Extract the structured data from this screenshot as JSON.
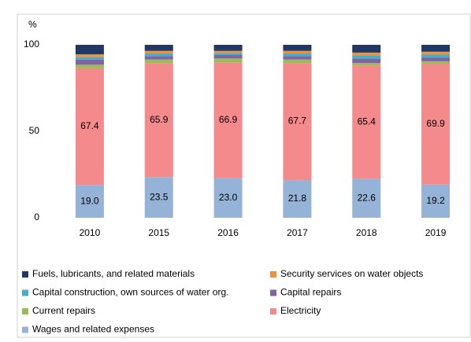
{
  "chart_data": {
    "type": "stacked_bar",
    "y_label": "%",
    "categories": [
      "2010",
      "2015",
      "2016",
      "2017",
      "2018",
      "2019"
    ],
    "ylim": [
      0,
      100
    ],
    "yticks": [
      0,
      50,
      100
    ],
    "series": [
      {
        "name": "Fuels, lubricants, and related materials",
        "color": "#203864",
        "values": [
          5.5,
          3.5,
          3.5,
          3.5,
          4.5,
          4.0
        ]
      },
      {
        "name": "Security services on water objects",
        "color": "#f0923a",
        "values": [
          1.5,
          1.5,
          1.2,
          1.5,
          1.5,
          1.5
        ]
      },
      {
        "name": "Capital construction, own sources of water org.",
        "color": "#4bacc6",
        "values": [
          1.5,
          1.5,
          1.2,
          1.5,
          2.0,
          2.0
        ]
      },
      {
        "name": "Capital repairs",
        "color": "#8064a2",
        "values": [
          3.0,
          2.0,
          2.0,
          2.0,
          2.5,
          2.0
        ]
      },
      {
        "name": "Current repairs",
        "color": "#9bbb59",
        "values": [
          2.1,
          2.1,
          2.2,
          2.0,
          1.5,
          1.4
        ]
      },
      {
        "name": "Electricity",
        "color": "#f58a8c",
        "values": [
          67.4,
          65.9,
          66.9,
          67.7,
          65.4,
          69.9
        ],
        "value_labels": [
          "67.4",
          "65.9",
          "66.9",
          "67.7",
          "65.4",
          "69.9"
        ]
      },
      {
        "name": "Wages and related expenses",
        "color": "#95b3d7",
        "values": [
          19.0,
          23.5,
          23.0,
          21.8,
          22.6,
          19.2
        ],
        "value_labels": [
          "19.0",
          "23.5",
          "23.0",
          "21.8",
          "22.6",
          "19.2"
        ]
      }
    ]
  }
}
